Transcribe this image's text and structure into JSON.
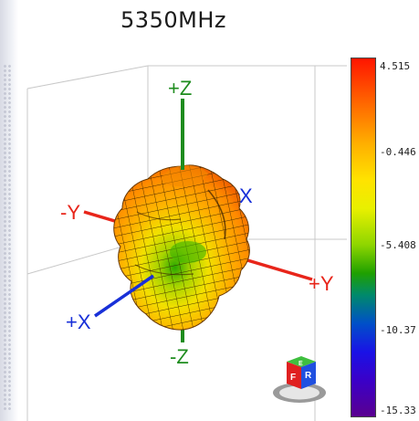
{
  "title": "5350MHz",
  "colorbar": {
    "ticks": [
      "4.515",
      "-0.446",
      "-5.408",
      "-10.37",
      "-15.33"
    ]
  },
  "axes": {
    "plus_z": "+Z",
    "minus_z": "-Z",
    "plus_y": "+Y",
    "minus_y": "-Y",
    "plus_x": "+X",
    "minus_x": "X"
  },
  "orientation_cube": {
    "front": "F",
    "right": "R",
    "top": "E"
  },
  "colors": {
    "z_axis": "#1e8c1e",
    "y_axis": "#e8251a",
    "x_axis": "#1830d8"
  }
}
